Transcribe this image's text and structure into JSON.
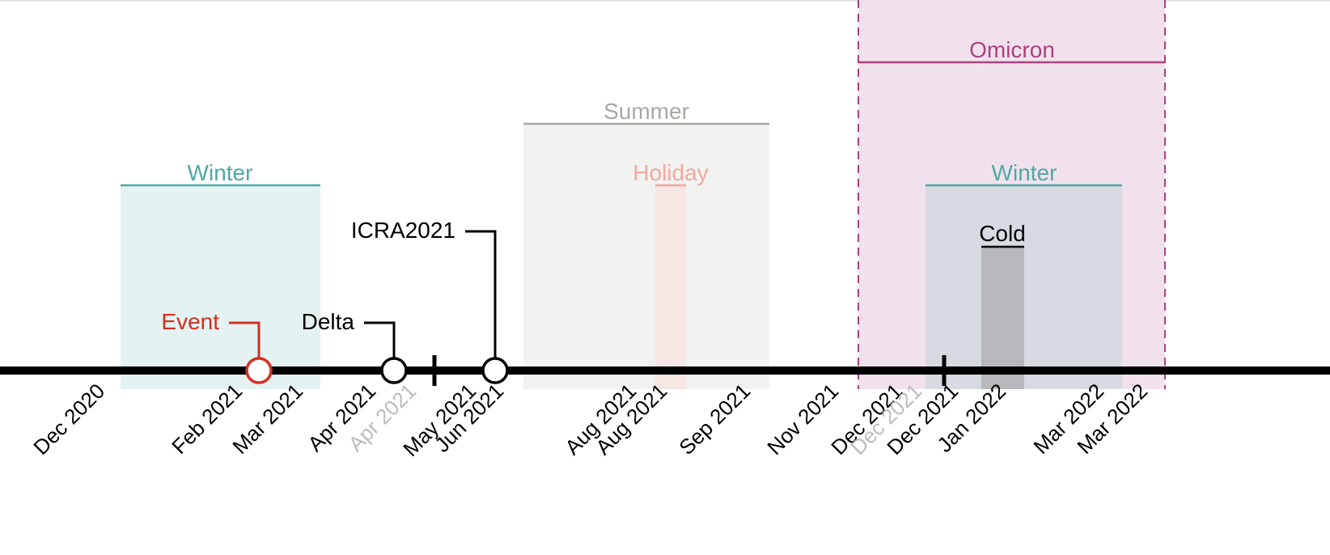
{
  "timeline": {
    "colors": {
      "axis": "#000000",
      "winter": "#4ea9a3",
      "summer": "#a9a9a3",
      "holiday": "#f2a89f",
      "omicron": "#a8447e",
      "event": "#d32f20",
      "marker": "#000000",
      "muted_tick": "#bdbdbd"
    },
    "periods": [
      {
        "key": "winter1",
        "label": "Winter",
        "color": "#4ea9a3",
        "fill": "#e4f2f1"
      },
      {
        "key": "summer",
        "label": "Summer",
        "color": "#a9a9a3",
        "fill": "#f2f2f0"
      },
      {
        "key": "holiday",
        "label": "Holiday",
        "color": "#f2a89f",
        "fill": "#f6e6e4"
      },
      {
        "key": "omicron",
        "label": "Omicron",
        "color": "#a8447e",
        "fill": "#f1e1ec",
        "dashed": true
      },
      {
        "key": "winter2",
        "label": "Winter",
        "color": "#4ea9a3",
        "fill": "#d6dbe2"
      },
      {
        "key": "cold",
        "label": "Cold",
        "color": "#000000",
        "fill": "#b7b8bb"
      }
    ],
    "events": [
      {
        "key": "event",
        "label": "Event",
        "color": "#d32f20"
      },
      {
        "key": "delta",
        "label": "Delta",
        "color": "#000000"
      },
      {
        "key": "icra",
        "label": "ICRA2021",
        "color": "#000000"
      }
    ],
    "tick_labels": [
      {
        "label": "Dec 2020",
        "muted": false
      },
      {
        "label": "Feb 2021",
        "muted": false
      },
      {
        "label": "Mar 2021",
        "muted": false
      },
      {
        "label": "Apr 2021",
        "muted": false
      },
      {
        "label": "Apr 2021",
        "muted": true
      },
      {
        "label": "May 2021",
        "muted": false
      },
      {
        "label": "Jun 2021",
        "muted": false
      },
      {
        "label": "Aug 2021",
        "muted": false
      },
      {
        "label": "Aug 2021",
        "muted": false
      },
      {
        "label": "Sep 2021",
        "muted": false
      },
      {
        "label": "Nov 2021",
        "muted": false
      },
      {
        "label": "Dec 2021",
        "muted": false
      },
      {
        "label": "Dec 2021",
        "muted": true
      },
      {
        "label": "Dec 2021",
        "muted": false
      },
      {
        "label": "Jan 2022",
        "muted": false
      },
      {
        "label": "Mar 2022",
        "muted": false
      },
      {
        "label": "Mar 2022",
        "muted": false
      }
    ]
  }
}
